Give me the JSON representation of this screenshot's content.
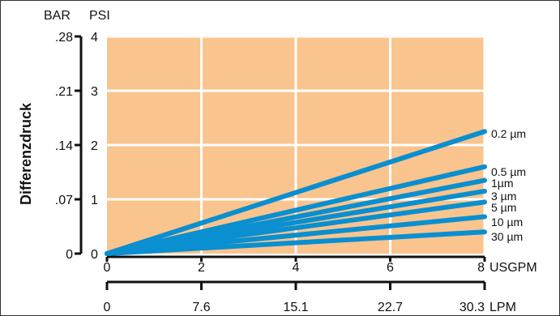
{
  "chart_data": {
    "type": "line",
    "ylabel": "Differenzdruck",
    "y_units": {
      "bar": "BAR",
      "psi": "PSI"
    },
    "y_ticks_psi": [
      "0",
      "1",
      "2",
      "3",
      "4"
    ],
    "y_ticks_bar": [
      "0",
      ".07",
      ".14",
      ".21",
      ".28"
    ],
    "ylim": [
      0,
      4
    ],
    "xlim": [
      0,
      8
    ],
    "x_unit_usgpm": "USGPM",
    "x_ticks_usgpm": [
      "0",
      "2",
      "4",
      "6",
      "8"
    ],
    "x_unit_lpm": "LPM",
    "x_ticks_lpm": [
      "0",
      "7.6",
      "15.1",
      "22.7",
      "30.3"
    ],
    "grid": true,
    "colors": {
      "plot_bg": "#f9c48e",
      "line": "#0a8fd0",
      "grid": "#ffffff"
    },
    "series": [
      {
        "name": "0.2 µm",
        "x": [
          0,
          8
        ],
        "y": [
          0,
          2.25
        ]
      },
      {
        "name": "0.5 µm",
        "x": [
          0,
          8
        ],
        "y": [
          0,
          1.6
        ]
      },
      {
        "name": "1µm",
        "x": [
          0,
          8
        ],
        "y": [
          0,
          1.35
        ]
      },
      {
        "name": "3 µm",
        "x": [
          0,
          8
        ],
        "y": [
          0,
          1.15
        ]
      },
      {
        "name": "5 µm",
        "x": [
          0,
          8
        ],
        "y": [
          0,
          0.95
        ]
      },
      {
        "name": "10 µm",
        "x": [
          0,
          8
        ],
        "y": [
          0,
          0.68
        ]
      },
      {
        "name": "30 µm",
        "x": [
          0,
          8
        ],
        "y": [
          0,
          0.4
        ]
      }
    ]
  }
}
